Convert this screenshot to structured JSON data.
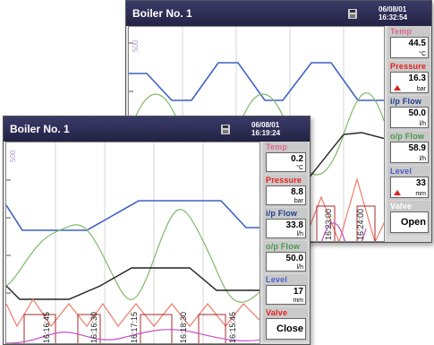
{
  "back": {
    "title": "Boiler No. 1",
    "date": "06/08/01",
    "time": "16:32:54",
    "scale_label": "500",
    "time_labels": [
      "16:23:00",
      "16:24:00"
    ],
    "cells": [
      {
        "label": "Temp",
        "value": "44.5",
        "unit": "°C",
        "alarm": false
      },
      {
        "label": "Pressure",
        "value": "16.3",
        "unit": "bar",
        "alarm": true
      },
      {
        "label": "i/p Flow",
        "value": "50.0",
        "unit": "l/h",
        "alarm": false
      },
      {
        "label": "o/p Flow",
        "value": "58.9",
        "unit": "l/h",
        "alarm": false
      },
      {
        "label": "Level",
        "value": "33",
        "unit": "mm",
        "alarm": true
      },
      {
        "label": "Valve",
        "value": "Open",
        "unit": "",
        "alarm": false
      }
    ]
  },
  "front": {
    "title": "Boiler No. 1",
    "date": "06/08/01",
    "time": "16:19:24",
    "scale_label": "500",
    "time_labels": [
      "16:16:45",
      "16:16:30",
      "16:17:15",
      "16:18:30",
      "16:15:45"
    ],
    "cells": [
      {
        "label": "Temp",
        "value": "0.2",
        "unit": "°C",
        "alarm": false
      },
      {
        "label": "Pressure",
        "value": "8.8",
        "unit": "bar",
        "alarm": false
      },
      {
        "label": "i/p Flow",
        "value": "33.8",
        "unit": "l/h",
        "alarm": false
      },
      {
        "label": "o/p Flow",
        "value": "50.0",
        "unit": "l/h",
        "alarm": false
      },
      {
        "label": "Level",
        "value": "17",
        "unit": "mm",
        "alarm": false
      },
      {
        "label": "Valve",
        "value": "Close",
        "unit": "",
        "alarm": false
      }
    ]
  },
  "colors": {
    "temp": "#e35b7a",
    "pressure": "#e8201c",
    "ip_flow": "#3a6fb0",
    "op_flow": "#2d8a2d",
    "level": "#4a5cc8",
    "valve": "#8a8a8a",
    "trace_blue": "#3d62c4",
    "trace_green": "#7fb86a",
    "trace_black": "#222222",
    "trace_red": "#f07a6a",
    "trace_magenta": "#c64fc9",
    "trace_darkred": "#a52a2a"
  }
}
